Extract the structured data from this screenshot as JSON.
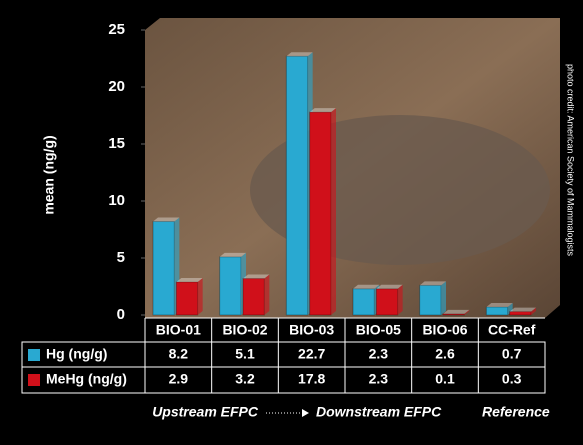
{
  "chart_data": {
    "type": "bar",
    "y_label": "mean (ng/g)",
    "credit": "photo credit: American Society of Mammalogists",
    "categories": [
      "BIO-01",
      "BIO-02",
      "BIO-03",
      "BIO-05",
      "BIO-06",
      "CC-Ref"
    ],
    "series": [
      {
        "name": "Hg (ng/g)",
        "color": "#29a9d1",
        "values": [
          8.2,
          5.1,
          22.7,
          2.3,
          2.6,
          0.7
        ]
      },
      {
        "name": "MeHg (ng/g)",
        "color": "#d0101a",
        "values": [
          2.9,
          3.2,
          17.8,
          2.3,
          0.1,
          0.3
        ]
      }
    ],
    "ylim": [
      0,
      25
    ],
    "yticks": [
      0,
      5,
      10,
      15,
      20,
      25
    ],
    "annotations": [
      "Upstream EFPC",
      "Downstream EFPC",
      "Reference"
    ]
  }
}
